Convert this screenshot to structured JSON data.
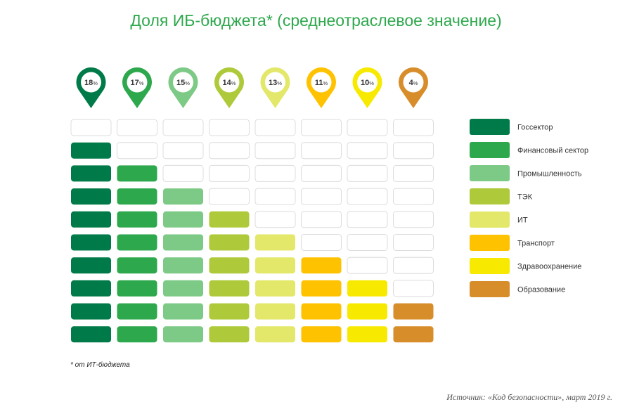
{
  "chart_data": {
    "type": "bar",
    "title": "Доля ИБ-бюджета* (среднеотраслевое значение)",
    "categories": [
      "Госсектор",
      "Финансовый сектор",
      "Промышленность",
      "ТЭК",
      "ИТ",
      "Транспорт",
      "Здравоохранение",
      "Образование"
    ],
    "values": [
      18,
      17,
      15,
      14,
      13,
      11,
      10,
      4
    ],
    "value_labels": [
      "18%",
      "17%",
      "15%",
      "14%",
      "13%",
      "11%",
      "10%",
      "4%"
    ],
    "colors": [
      "#007a48",
      "#2ea84d",
      "#7dca86",
      "#aeca3a",
      "#e3e86a",
      "#ffc200",
      "#f7ea00",
      "#d88d2b"
    ],
    "grid_rows": 10,
    "legend_position": "right"
  },
  "footnote": "* от ИТ-бюджета",
  "source": "Источник: «Код безопасности», март 2019 г."
}
